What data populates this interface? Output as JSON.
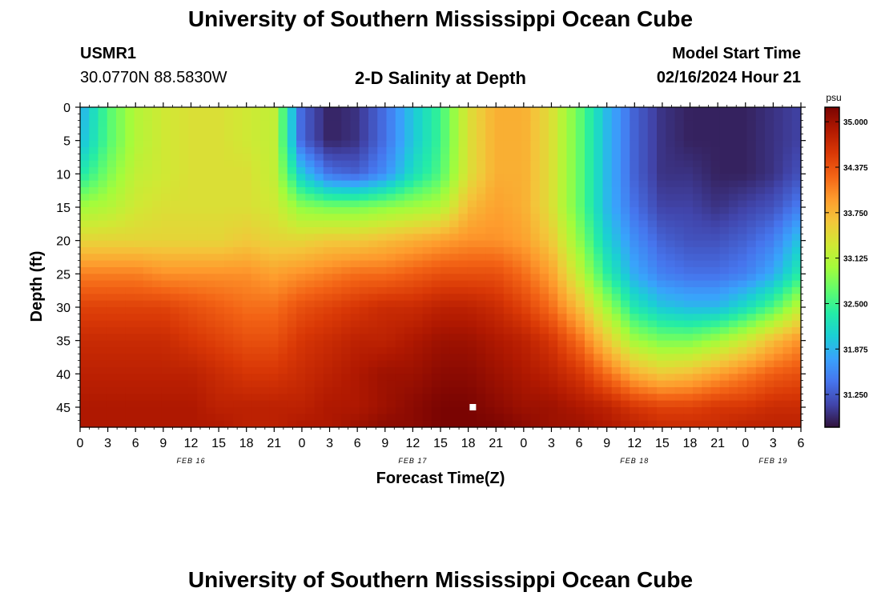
{
  "header": {
    "title": "University of Southern Mississippi Ocean Cube",
    "station_id": "USMR1",
    "station_coords": "30.0770N  88.5830W",
    "plot_title": "2-D Salinity at Depth",
    "model_label": "Model Start Time",
    "model_time": "02/16/2024 Hour 21"
  },
  "footer": {
    "title": "University of Southern Mississippi Ocean Cube"
  },
  "chart_data": {
    "type": "heatmap",
    "title": "2-D Salinity at Depth",
    "xlabel": "Forecast Time(Z)",
    "ylabel": "Depth (ft)",
    "x_tick_labels": [
      "0",
      "3",
      "6",
      "9",
      "12",
      "15",
      "18",
      "21",
      "0",
      "3",
      "6",
      "9",
      "12",
      "15",
      "18",
      "21",
      "0",
      "3",
      "6",
      "9",
      "12",
      "15",
      "18",
      "21",
      "0",
      "3",
      "6"
    ],
    "date_labels": [
      {
        "label": "FEB 16",
        "hour_index": 12
      },
      {
        "label": "FEB 17",
        "hour_index": 36
      },
      {
        "label": "FEB 18",
        "hour_index": 60
      },
      {
        "label": "FEB 19",
        "hour_index": 75
      }
    ],
    "x_range_hours": [
      0,
      78
    ],
    "y_tick_labels": [
      "0",
      "5",
      "10",
      "15",
      "20",
      "25",
      "30",
      "35",
      "40",
      "45"
    ],
    "y_range_ft": [
      0,
      48
    ],
    "y_inverted": true,
    "colorbar": {
      "unit": "psu",
      "ticks": [
        "35.000",
        "34.375",
        "33.750",
        "33.125",
        "32.500",
        "31.875",
        "31.250"
      ],
      "range": [
        30.8,
        35.2
      ]
    },
    "x_hours": [
      0,
      3,
      6,
      9,
      12,
      15,
      18,
      21,
      24,
      27,
      30,
      33,
      36,
      39,
      42,
      45,
      48,
      51,
      54,
      57,
      60,
      63,
      66,
      69,
      72,
      75,
      78
    ],
    "depths_ft": [
      0,
      5,
      10,
      15,
      20,
      25,
      30,
      35,
      40,
      45,
      48
    ],
    "salinity_psu": [
      [
        31.8,
        32.6,
        33.1,
        33.3,
        33.4,
        33.4,
        33.3,
        33.2,
        31.3,
        30.9,
        31.0,
        31.4,
        32.0,
        32.5,
        33.4,
        33.8,
        33.8,
        33.4,
        32.7,
        31.9,
        31.3,
        31.0,
        30.9,
        30.9,
        30.9,
        31.0,
        31.1
      ],
      [
        31.9,
        32.6,
        33.1,
        33.3,
        33.4,
        33.4,
        33.3,
        33.2,
        31.3,
        30.9,
        31.0,
        31.4,
        32.0,
        32.5,
        33.4,
        33.8,
        33.8,
        33.4,
        32.7,
        31.9,
        31.3,
        31.0,
        30.9,
        30.9,
        30.9,
        31.0,
        31.1
      ],
      [
        32.3,
        32.8,
        33.2,
        33.3,
        33.4,
        33.4,
        33.4,
        33.2,
        32.0,
        31.4,
        31.3,
        31.6,
        32.2,
        32.6,
        33.4,
        33.8,
        33.8,
        33.4,
        32.7,
        31.9,
        31.3,
        31.0,
        31.0,
        30.9,
        30.9,
        31.0,
        31.2
      ],
      [
        33.0,
        33.1,
        33.3,
        33.4,
        33.4,
        33.4,
        33.4,
        33.3,
        32.9,
        32.8,
        32.8,
        32.9,
        33.0,
        33.1,
        33.7,
        33.9,
        33.8,
        33.4,
        32.7,
        31.9,
        31.4,
        31.1,
        31.1,
        31.0,
        31.1,
        31.2,
        31.5
      ],
      [
        33.5,
        33.5,
        33.5,
        33.5,
        33.5,
        33.5,
        33.6,
        33.5,
        33.5,
        33.6,
        33.6,
        33.7,
        33.8,
        33.9,
        34.0,
        34.0,
        33.9,
        33.6,
        32.9,
        32.1,
        31.6,
        31.3,
        31.2,
        31.2,
        31.3,
        31.5,
        32.0
      ],
      [
        34.1,
        34.1,
        34.1,
        34.0,
        34.0,
        34.0,
        34.0,
        33.9,
        34.0,
        34.1,
        34.2,
        34.2,
        34.3,
        34.4,
        34.4,
        34.4,
        34.2,
        33.9,
        33.2,
        32.4,
        31.8,
        31.5,
        31.4,
        31.4,
        31.5,
        31.8,
        32.4
      ],
      [
        34.5,
        34.5,
        34.5,
        34.5,
        34.4,
        34.3,
        34.2,
        34.2,
        34.4,
        34.5,
        34.6,
        34.7,
        34.7,
        34.8,
        34.8,
        34.7,
        34.5,
        34.2,
        33.7,
        33.0,
        32.3,
        32.0,
        31.9,
        31.9,
        32.2,
        32.6,
        33.2
      ],
      [
        34.7,
        34.7,
        34.7,
        34.7,
        34.6,
        34.5,
        34.4,
        34.4,
        34.6,
        34.7,
        34.8,
        34.8,
        34.9,
        35.0,
        35.0,
        34.9,
        34.8,
        34.6,
        34.2,
        33.6,
        33.0,
        32.8,
        32.8,
        33.0,
        33.3,
        33.7,
        34.0
      ],
      [
        34.8,
        34.8,
        34.8,
        34.8,
        34.8,
        34.7,
        34.6,
        34.6,
        34.7,
        34.8,
        34.9,
        35.0,
        35.0,
        35.1,
        35.1,
        35.0,
        34.9,
        34.8,
        34.6,
        34.2,
        33.8,
        33.6,
        33.7,
        33.9,
        34.1,
        34.3,
        34.4
      ],
      [
        34.9,
        34.9,
        34.9,
        34.9,
        34.9,
        34.8,
        34.8,
        34.8,
        34.8,
        34.9,
        34.9,
        35.0,
        35.1,
        35.2,
        35.2,
        35.1,
        35.0,
        35.0,
        34.9,
        34.8,
        34.6,
        34.5,
        34.5,
        34.6,
        34.6,
        34.7,
        34.7
      ],
      [
        34.9,
        34.9,
        34.9,
        34.9,
        34.9,
        34.9,
        34.8,
        34.8,
        34.9,
        34.9,
        35.0,
        35.1,
        35.1,
        35.2,
        35.2,
        35.2,
        35.1,
        35.0,
        35.0,
        34.9,
        34.8,
        34.7,
        34.7,
        34.7,
        34.8,
        34.8,
        34.8
      ]
    ],
    "marker": {
      "hour": 42.5,
      "depth_ft": 45,
      "color": "#ffffff"
    },
    "colormap": [
      "#30123b",
      "#4145ab",
      "#4675ed",
      "#39a2fc",
      "#1bcfd4",
      "#24eca6",
      "#61fc6c",
      "#a4fc3b",
      "#d1e834",
      "#f3c63a",
      "#fe9b2d",
      "#f36315",
      "#d93806",
      "#b11901",
      "#7a0402"
    ]
  }
}
